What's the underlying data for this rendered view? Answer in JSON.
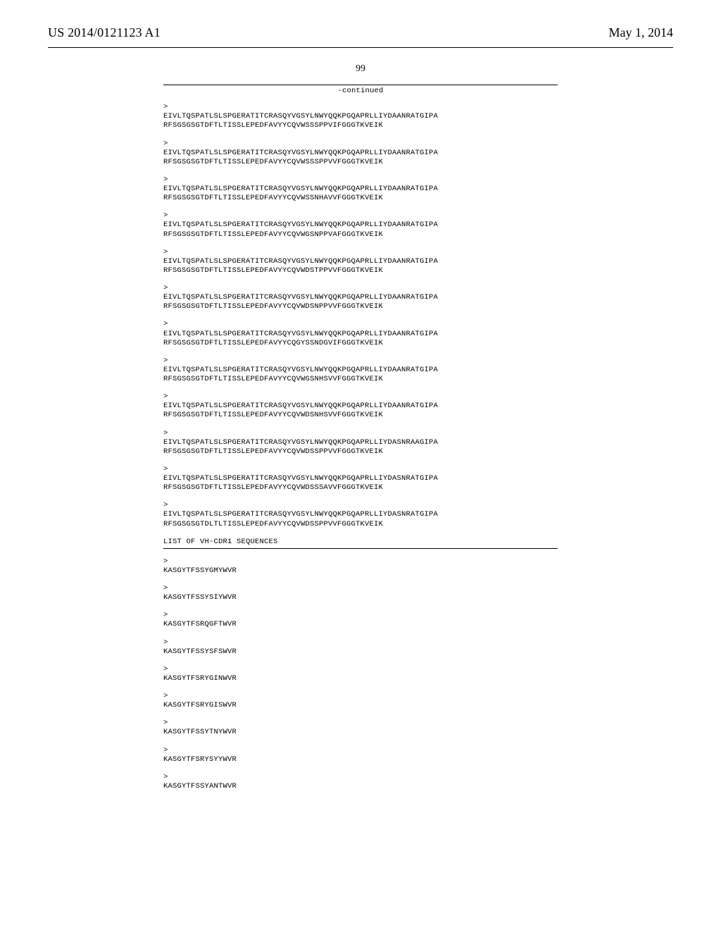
{
  "header": {
    "publication_number": "US 2014/0121123 A1",
    "publication_date": "May 1, 2014"
  },
  "page_number": "99",
  "continued_label": "-continued",
  "long_sequences": [
    {
      "line1": "EIVLTQSPATLSLSPGERATITCRASQYVGSYLNWYQQKPGQAPRLLIYDAANRATGIPA",
      "line2": "RFSGSGSGTDFTLTISSLEPEDFAVYYCQVWSSSPPVIFGGGTKVEIK"
    },
    {
      "line1": "EIVLTQSPATLSLSPGERATITCRASQYVGSYLNWYQQKPGQAPRLLIYDAANRATGIPA",
      "line2": "RFSGSGSGTDFTLTISSLEPEDFAVYYCQVWSSSPPVVFGGGTKVEIK"
    },
    {
      "line1": "EIVLTQSPATLSLSPGERATITCRASQYVGSYLNWYQQKPGQAPRLLIYDAANRATGIPA",
      "line2": "RFSGSGSGTDFTLTISSLEPEDFAVYYCQVWSSNHAVVFGGGTKVEIK"
    },
    {
      "line1": "EIVLTQSPATLSLSPGERATITCRASQYVGSYLNWYQQKPGQAPRLLIYDAANRATGIPA",
      "line2": "RFSGSGSGTDFTLTISSLEPEDFAVYYCQVWGSNPPVAFGGGTKVEIK"
    },
    {
      "line1": "EIVLTQSPATLSLSPGERATITCRASQYVGSYLNWYQQKPGQAPRLLIYDAANRATGIPA",
      "line2": "RFSGSGSGTDFTLTISSLEPEDFAVYYCQVWDSTPPVVFGGGTKVEIK"
    },
    {
      "line1": "EIVLTQSPATLSLSPGERATITCRASQYVGSYLNWYQQKPGQAPRLLIYDAANRATGIPA",
      "line2": "RFSGSGSGTDFTLTISSLEPEDFAVYYCQVWDSNPPVVFGGGTKVEIK"
    },
    {
      "line1": "EIVLTQSPATLSLSPGERATITCRASQYVGSYLNWYQQKPGQAPRLLIYDAANRATGIPA",
      "line2": "RFSGSGSGTDFTLTISSLEPEDFAVYYCQGYSSNDGVIFGGGTKVEIK"
    },
    {
      "line1": "EIVLTQSPATLSLSPGERATITCRASQYVGSYLNWYQQKPGQAPRLLIYDAANRATGIPA",
      "line2": "RFSGSGSGTDFTLTISSLEPEDFAVYYCQVWGSNHSVVFGGGTKVEIK"
    },
    {
      "line1": "EIVLTQSPATLSLSPGERATITCRASQYVGSYLNWYQQKPGQAPRLLIYDAANRATGIPA",
      "line2": "RFSGSGSGTDFTLTISSLEPEDFAVYYCQVWDSNHSVVFGGGTKVEIK"
    },
    {
      "line1": "EIVLTQSPATLSLSPGERATITCRASQYVGSYLNWYQQKPGQAPRLLIYDASNRAAGIPA",
      "line2": "RFSGSGSGTDFTLTISSLEPEDFAVYYCQVWDSSPPVVFGGGTKVEIK"
    },
    {
      "line1": "EIVLTQSPATLSLSPGERATITCRASQYVGSYLNWYQQKPGQAPRLLIYDASNRATGIPA",
      "line2": "RFSGSGSGTDFTLTISSLEPEDFAVYYCQVWDSSSAVVFGGGTKVEIK"
    },
    {
      "line1": "EIVLTQSPATLSLSPGERATITCRASQYVGSYLNWYQQKPGQAPRLLIYDASNRATGIPA",
      "line2": "RFSGSGSGTDLTLTISSLEPEDFAVYYCQVWDSSPPVVFGGGTKVEIK"
    }
  ],
  "list_header": "LIST OF VH-CDR1 SEQUENCES",
  "short_sequences": [
    "KASGYTFSSYGMYWVR",
    "KASGYTFSSYSIYWVR",
    "KASGYTFSRQGFTWVR",
    "KASGYTFSSYSFSWVR",
    "KASGYTFSRYGINWVR",
    "KASGYTFSRYGISWVR",
    "KASGYTFSSYTNYWVR",
    "KASGYTFSRYSYYWVR",
    "KASGYTFSSYANTWVR"
  ]
}
